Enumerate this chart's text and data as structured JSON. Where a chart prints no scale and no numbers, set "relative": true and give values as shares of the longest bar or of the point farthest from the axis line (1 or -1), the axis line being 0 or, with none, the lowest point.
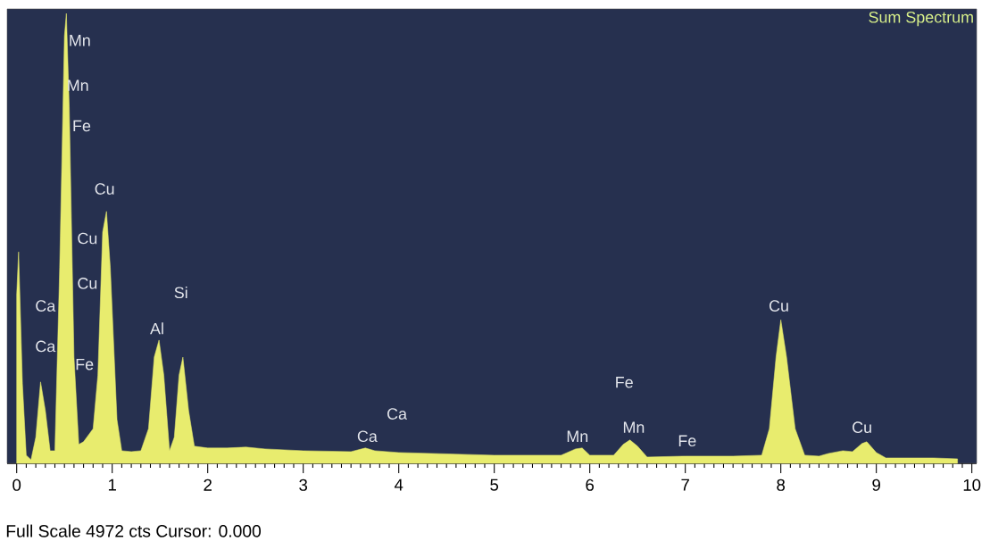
{
  "chart_data": {
    "type": "area",
    "relative": true,
    "xlim": [
      -0.1,
      10.05
    ],
    "xticks": [
      0,
      1,
      2,
      3,
      4,
      5,
      6,
      7,
      8,
      9,
      10
    ],
    "color": "#e8ec6e",
    "x": [
      0.0,
      0.02,
      0.06,
      0.1,
      0.15,
      0.2,
      0.25,
      0.3,
      0.35,
      0.4,
      0.45,
      0.5,
      0.52,
      0.55,
      0.6,
      0.65,
      0.7,
      0.8,
      0.85,
      0.9,
      0.94,
      0.98,
      1.05,
      1.1,
      1.2,
      1.3,
      1.38,
      1.44,
      1.49,
      1.54,
      1.6,
      1.65,
      1.7,
      1.74,
      1.8,
      1.86,
      2.0,
      2.2,
      2.4,
      2.6,
      3.0,
      3.5,
      3.65,
      3.75,
      4.0,
      5.0,
      5.7,
      5.85,
      5.92,
      6.0,
      6.25,
      6.35,
      6.42,
      6.5,
      6.6,
      7.0,
      7.5,
      7.8,
      7.88,
      7.95,
      8.0,
      8.06,
      8.15,
      8.25,
      8.4,
      8.5,
      8.65,
      8.75,
      8.85,
      8.9,
      9.0,
      9.1,
      9.6,
      9.85
    ],
    "values": [
      0.375,
      0.47,
      0.177,
      0.018,
      0.008,
      0.058,
      0.181,
      0.117,
      0.028,
      0.028,
      0.435,
      0.95,
      1.0,
      0.792,
      0.236,
      0.042,
      0.048,
      0.077,
      0.196,
      0.514,
      0.56,
      0.435,
      0.097,
      0.028,
      0.026,
      0.028,
      0.077,
      0.236,
      0.274,
      0.196,
      0.028,
      0.058,
      0.196,
      0.236,
      0.117,
      0.038,
      0.034,
      0.034,
      0.036,
      0.032,
      0.028,
      0.026,
      0.034,
      0.028,
      0.024,
      0.018,
      0.018,
      0.032,
      0.034,
      0.018,
      0.018,
      0.042,
      0.052,
      0.038,
      0.014,
      0.016,
      0.016,
      0.018,
      0.077,
      0.236,
      0.319,
      0.236,
      0.077,
      0.018,
      0.016,
      0.022,
      0.028,
      0.026,
      0.044,
      0.048,
      0.024,
      0.012,
      0.012,
      0.01
    ],
    "annotations": [
      "Mn",
      "Mn",
      "Fe",
      "Cu",
      "Cu",
      "Cu",
      "Ca",
      "Ca",
      "Fe",
      "Al",
      "Si",
      "Ca",
      "Ca",
      "Mn",
      "Fe",
      "Mn",
      "Fe",
      "Cu",
      "Cu",
      "Sum Spectrum",
      "Full Scale 4972 cts Cursor: 0.000"
    ]
  }
}
